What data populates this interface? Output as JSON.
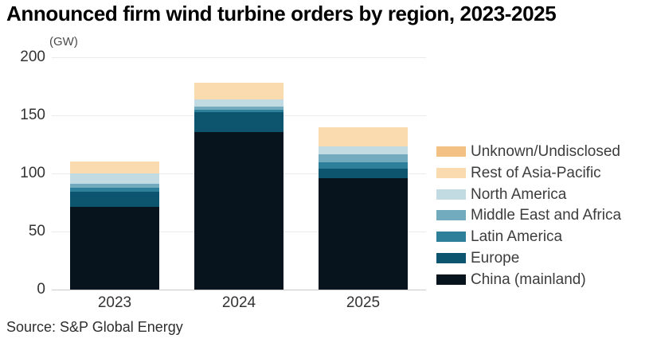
{
  "header": {
    "title": "Announced firm wind turbine orders by region, 2023-2025"
  },
  "chart": {
    "unit_label": "(GW)"
  },
  "chart_data": {
    "type": "bar",
    "stacked": true,
    "title": "Announced firm wind turbine orders by region, 2023-2025",
    "unit": "GW",
    "categories": [
      "2023",
      "2024",
      "2025"
    ],
    "series": [
      {
        "name": "China (mainland)",
        "color": "#07141d",
        "values": [
          71,
          135.5,
          96
        ]
      },
      {
        "name": "Europe",
        "color": "#0d556f",
        "values": [
          13,
          17,
          8
        ]
      },
      {
        "name": "Latin America",
        "color": "#2e7f99",
        "values": [
          3.5,
          2,
          5.5
        ]
      },
      {
        "name": "Middle East and Africa",
        "color": "#72abbd",
        "values": [
          3.5,
          3,
          7
        ]
      },
      {
        "name": "North America",
        "color": "#c2dbe2",
        "values": [
          9,
          6.5,
          7
        ]
      },
      {
        "name": "Rest of Asia-Pacific",
        "color": "#fadbb0",
        "values": [
          10.5,
          14,
          16.5
        ]
      },
      {
        "name": "Unknown/Undisclosed",
        "color": "#f3c183",
        "values": [
          0,
          0,
          0
        ]
      }
    ],
    "totals": [
      110.5,
      178,
      140
    ],
    "xlabel": "",
    "ylabel": "GW",
    "y_ticks": [
      0,
      50,
      100,
      150,
      200
    ],
    "ylim": [
      0,
      200
    ],
    "grid": "horizontal",
    "legend_position": "right"
  },
  "legend": {
    "items": [
      {
        "label": "Unknown/Undisclosed",
        "color": "#f3c183"
      },
      {
        "label": "Rest of Asia-Pacific",
        "color": "#fadbb0"
      },
      {
        "label": "North America",
        "color": "#c2dbe2"
      },
      {
        "label": "Middle East and Africa",
        "color": "#72abbd"
      },
      {
        "label": "Latin America",
        "color": "#2e7f99"
      },
      {
        "label": "Europe",
        "color": "#0d556f"
      },
      {
        "label": "China (mainland)",
        "color": "#07141d"
      }
    ]
  },
  "footer": {
    "source": "Source: S&P Global Energy"
  }
}
